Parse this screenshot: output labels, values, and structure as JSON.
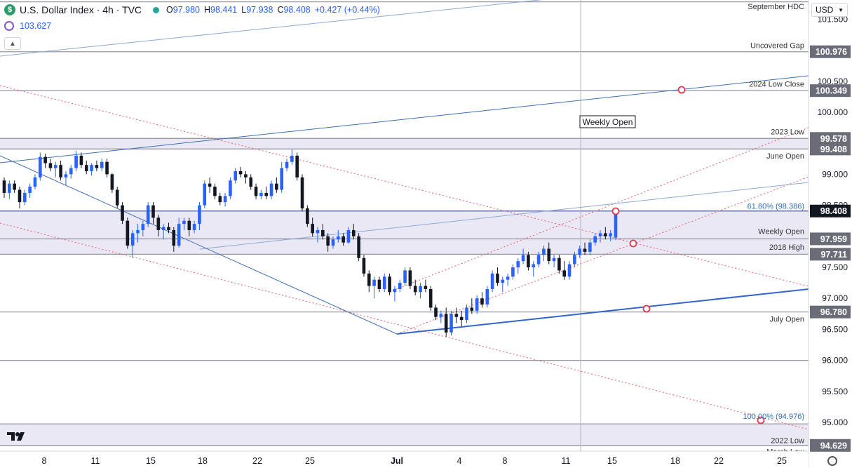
{
  "header": {
    "title": "U.S. Dollar Index · 4h · TVC",
    "o_label": "O",
    "o": "97.980",
    "h_label": "H",
    "h": "98.441",
    "l_label": "L",
    "l": "97.938",
    "c_label": "C",
    "c": "98.408",
    "change": "+0.427 (+0.44%)",
    "indicator_value": "103.627",
    "currency": "USD"
  },
  "colors": {
    "up": "#2962ff",
    "down": "#131722",
    "axis_bg": "#ffffff",
    "highlight": "#131722",
    "zone": "#e8e4f3",
    "red_dotted": "#e05a6a"
  },
  "chart_data": {
    "type": "candlestick",
    "title": "U.S. Dollar Index · 4h · TVC",
    "x_tick_labels": [
      "8",
      "11",
      "15",
      "18",
      "22",
      "25",
      "Jul",
      "4",
      "8",
      "11",
      "15",
      "18",
      "22",
      "25"
    ],
    "y_ticks": [
      101.5,
      101.0,
      100.5,
      100.0,
      99.5,
      99.0,
      98.5,
      98.0,
      97.5,
      97.0,
      96.5,
      96.0,
      95.5,
      95.0
    ],
    "y_tick_labels": [
      "101.500",
      "101.000",
      "100.500",
      "100.000",
      "99.500",
      "99.000",
      "98.500",
      "98.000",
      "97.500",
      "97.000",
      "96.500",
      "96.000",
      "95.500",
      "95.000"
    ],
    "ylim": [
      94.45,
      101.85
    ],
    "price_badges": [
      {
        "value": 100.976,
        "label": "100.976",
        "style": "gray"
      },
      {
        "value": 100.349,
        "label": "100.349",
        "style": "gray"
      },
      {
        "value": 99.578,
        "label": "99.578",
        "style": "gray"
      },
      {
        "value": 99.408,
        "label": "99.408",
        "style": "gray"
      },
      {
        "value": 98.408,
        "label": "98.408",
        "style": "dark"
      },
      {
        "value": 97.959,
        "label": "97.959",
        "style": "gray"
      },
      {
        "value": 97.711,
        "label": "97.711",
        "style": "gray"
      },
      {
        "value": 96.78,
        "label": "96.780",
        "style": "gray"
      },
      {
        "value": 94.629,
        "label": "94.629",
        "style": "gray"
      }
    ],
    "level_labels": [
      {
        "value": 101.71,
        "text": "September HDC"
      },
      {
        "value": 101.08,
        "text": "Uncovered Gap"
      },
      {
        "value": 100.46,
        "text": "2024 Low Close"
      },
      {
        "value": 99.69,
        "text": "2023 Low"
      },
      {
        "value": 99.3,
        "text": "June Open"
      },
      {
        "value": 98.49,
        "text": "61.80% (98.386)"
      },
      {
        "value": 98.08,
        "text": "Weekly Open"
      },
      {
        "value": 97.83,
        "text": "2018 High"
      },
      {
        "value": 96.67,
        "text": "July Open"
      },
      {
        "value": 95.1,
        "text": "100.00% (94.976)"
      },
      {
        "value": 94.71,
        "text": "2022 Low"
      },
      {
        "value": 94.53,
        "text": "March Low"
      }
    ],
    "annotation": "Weekly Open",
    "candles": [
      [
        98.9,
        98.95,
        98.62,
        98.7
      ],
      [
        98.7,
        98.9,
        98.6,
        98.85
      ],
      [
        98.85,
        98.9,
        98.7,
        98.75
      ],
      [
        98.75,
        98.8,
        98.45,
        98.55
      ],
      [
        98.55,
        98.75,
        98.5,
        98.7
      ],
      [
        98.7,
        98.85,
        98.62,
        98.8
      ],
      [
        98.8,
        99.0,
        98.76,
        98.95
      ],
      [
        98.95,
        99.35,
        98.9,
        99.28
      ],
      [
        99.28,
        99.33,
        99.1,
        99.18
      ],
      [
        99.18,
        99.25,
        99.05,
        99.1
      ],
      [
        99.1,
        99.2,
        98.95,
        99.15
      ],
      [
        99.15,
        99.22,
        98.9,
        98.95
      ],
      [
        98.95,
        99.05,
        98.82,
        99.0
      ],
      [
        99.0,
        99.15,
        98.93,
        99.1
      ],
      [
        99.1,
        99.38,
        99.05,
        99.3
      ],
      [
        99.3,
        99.35,
        99.1,
        99.15
      ],
      [
        99.15,
        99.22,
        99.0,
        99.05
      ],
      [
        99.05,
        99.18,
        98.98,
        99.15
      ],
      [
        99.15,
        99.22,
        99.05,
        99.1
      ],
      [
        99.1,
        99.25,
        99.05,
        99.2
      ],
      [
        99.2,
        99.25,
        98.95,
        99.0
      ],
      [
        99.0,
        99.02,
        98.7,
        98.75
      ],
      [
        98.75,
        98.8,
        98.45,
        98.5
      ],
      [
        98.5,
        98.55,
        98.2,
        98.25
      ],
      [
        98.25,
        98.3,
        97.8,
        97.85
      ],
      [
        97.85,
        98.1,
        97.65,
        98.05
      ],
      [
        98.05,
        98.2,
        97.9,
        98.1
      ],
      [
        98.1,
        98.25,
        98.0,
        98.2
      ],
      [
        98.2,
        98.55,
        98.15,
        98.5
      ],
      [
        98.5,
        98.55,
        98.2,
        98.3
      ],
      [
        98.3,
        98.35,
        98.0,
        98.1
      ],
      [
        98.1,
        98.2,
        97.95,
        98.15
      ],
      [
        98.15,
        98.22,
        98.05,
        98.1
      ],
      [
        98.1,
        98.15,
        97.75,
        97.85
      ],
      [
        97.85,
        98.3,
        97.82,
        98.2
      ],
      [
        98.2,
        98.3,
        98.1,
        98.25
      ],
      [
        98.25,
        98.3,
        98.0,
        98.1
      ],
      [
        98.1,
        98.25,
        98.05,
        98.2
      ],
      [
        98.2,
        98.55,
        98.1,
        98.5
      ],
      [
        98.5,
        98.9,
        98.45,
        98.85
      ],
      [
        98.85,
        98.95,
        98.7,
        98.8
      ],
      [
        98.8,
        98.85,
        98.6,
        98.65
      ],
      [
        98.65,
        98.7,
        98.5,
        98.55
      ],
      [
        98.55,
        98.7,
        98.48,
        98.65
      ],
      [
        98.65,
        98.95,
        98.6,
        98.9
      ],
      [
        98.9,
        99.1,
        98.85,
        99.05
      ],
      [
        99.05,
        99.12,
        98.95,
        99.0
      ],
      [
        99.0,
        99.05,
        98.85,
        98.95
      ],
      [
        98.95,
        99.0,
        98.75,
        98.8
      ],
      [
        98.8,
        98.85,
        98.6,
        98.65
      ],
      [
        98.65,
        98.75,
        98.6,
        98.7
      ],
      [
        98.7,
        98.8,
        98.6,
        98.65
      ],
      [
        98.65,
        98.9,
        98.6,
        98.85
      ],
      [
        98.85,
        98.95,
        98.7,
        98.75
      ],
      [
        98.75,
        99.2,
        98.7,
        99.1
      ],
      [
        99.1,
        99.25,
        99.05,
        99.2
      ],
      [
        99.2,
        99.4,
        99.15,
        99.3
      ],
      [
        99.3,
        99.35,
        98.9,
        98.95
      ],
      [
        98.95,
        99.0,
        98.4,
        98.45
      ],
      [
        98.45,
        98.5,
        98.15,
        98.2
      ],
      [
        98.2,
        98.3,
        98.0,
        98.05
      ],
      [
        98.05,
        98.15,
        97.9,
        98.1
      ],
      [
        98.1,
        98.2,
        97.95,
        98.0
      ],
      [
        98.0,
        98.05,
        97.75,
        97.85
      ],
      [
        97.85,
        98.0,
        97.8,
        97.95
      ],
      [
        97.95,
        98.1,
        97.9,
        98.0
      ],
      [
        98.0,
        98.05,
        97.85,
        97.9
      ],
      [
        97.9,
        98.15,
        97.88,
        98.1
      ],
      [
        98.1,
        98.2,
        97.95,
        98.0
      ],
      [
        98.0,
        98.05,
        97.6,
        97.65
      ],
      [
        97.65,
        97.7,
        97.35,
        97.4
      ],
      [
        97.4,
        97.45,
        97.1,
        97.2
      ],
      [
        97.2,
        97.35,
        97.0,
        97.3
      ],
      [
        97.3,
        97.35,
        97.1,
        97.15
      ],
      [
        97.15,
        97.4,
        97.1,
        97.35
      ],
      [
        97.35,
        97.4,
        97.05,
        97.1
      ],
      [
        97.1,
        97.2,
        96.95,
        97.15
      ],
      [
        97.15,
        97.3,
        97.1,
        97.25
      ],
      [
        97.25,
        97.5,
        97.2,
        97.45
      ],
      [
        97.45,
        97.5,
        97.15,
        97.2
      ],
      [
        97.2,
        97.3,
        97.05,
        97.1
      ],
      [
        97.1,
        97.25,
        97.0,
        97.2
      ],
      [
        97.2,
        97.3,
        97.1,
        97.15
      ],
      [
        97.15,
        97.2,
        96.8,
        96.85
      ],
      [
        96.85,
        96.9,
        96.65,
        96.7
      ],
      [
        96.7,
        96.8,
        96.6,
        96.75
      ],
      [
        96.75,
        96.85,
        96.38,
        96.45
      ],
      [
        96.45,
        96.8,
        96.4,
        96.75
      ],
      [
        96.75,
        96.85,
        96.6,
        96.7
      ],
      [
        96.7,
        96.8,
        96.55,
        96.65
      ],
      [
        96.65,
        96.9,
        96.6,
        96.85
      ],
      [
        96.85,
        97.0,
        96.75,
        96.8
      ],
      [
        96.8,
        97.05,
        96.75,
        97.0
      ],
      [
        97.0,
        97.1,
        96.85,
        96.9
      ],
      [
        96.9,
        97.2,
        96.85,
        97.15
      ],
      [
        97.15,
        97.45,
        97.1,
        97.4
      ],
      [
        97.4,
        97.5,
        97.2,
        97.25
      ],
      [
        97.25,
        97.35,
        97.1,
        97.3
      ],
      [
        97.3,
        97.4,
        97.2,
        97.35
      ],
      [
        97.35,
        97.55,
        97.3,
        97.5
      ],
      [
        97.5,
        97.65,
        97.4,
        97.6
      ],
      [
        97.6,
        97.8,
        97.55,
        97.7
      ],
      [
        97.7,
        97.75,
        97.45,
        97.5
      ],
      [
        97.5,
        97.6,
        97.35,
        97.55
      ],
      [
        97.55,
        97.75,
        97.5,
        97.7
      ],
      [
        97.7,
        97.85,
        97.6,
        97.8
      ],
      [
        97.8,
        97.9,
        97.55,
        97.6
      ],
      [
        97.6,
        97.7,
        97.5,
        97.65
      ],
      [
        97.65,
        97.7,
        97.4,
        97.45
      ],
      [
        97.45,
        97.6,
        97.3,
        97.35
      ],
      [
        97.35,
        97.6,
        97.3,
        97.55
      ],
      [
        97.55,
        97.75,
        97.5,
        97.7
      ],
      [
        97.7,
        97.85,
        97.65,
        97.8
      ],
      [
        97.8,
        97.9,
        97.7,
        97.75
      ],
      [
        97.75,
        97.95,
        97.7,
        97.9
      ],
      [
        97.9,
        98.05,
        97.85,
        98.0
      ],
      [
        98.0,
        98.1,
        97.9,
        98.05
      ],
      [
        98.05,
        98.15,
        97.95,
        98.0
      ],
      [
        98.0,
        98.1,
        97.92,
        98.05
      ],
      [
        97.98,
        98.44,
        97.94,
        98.41
      ]
    ]
  }
}
